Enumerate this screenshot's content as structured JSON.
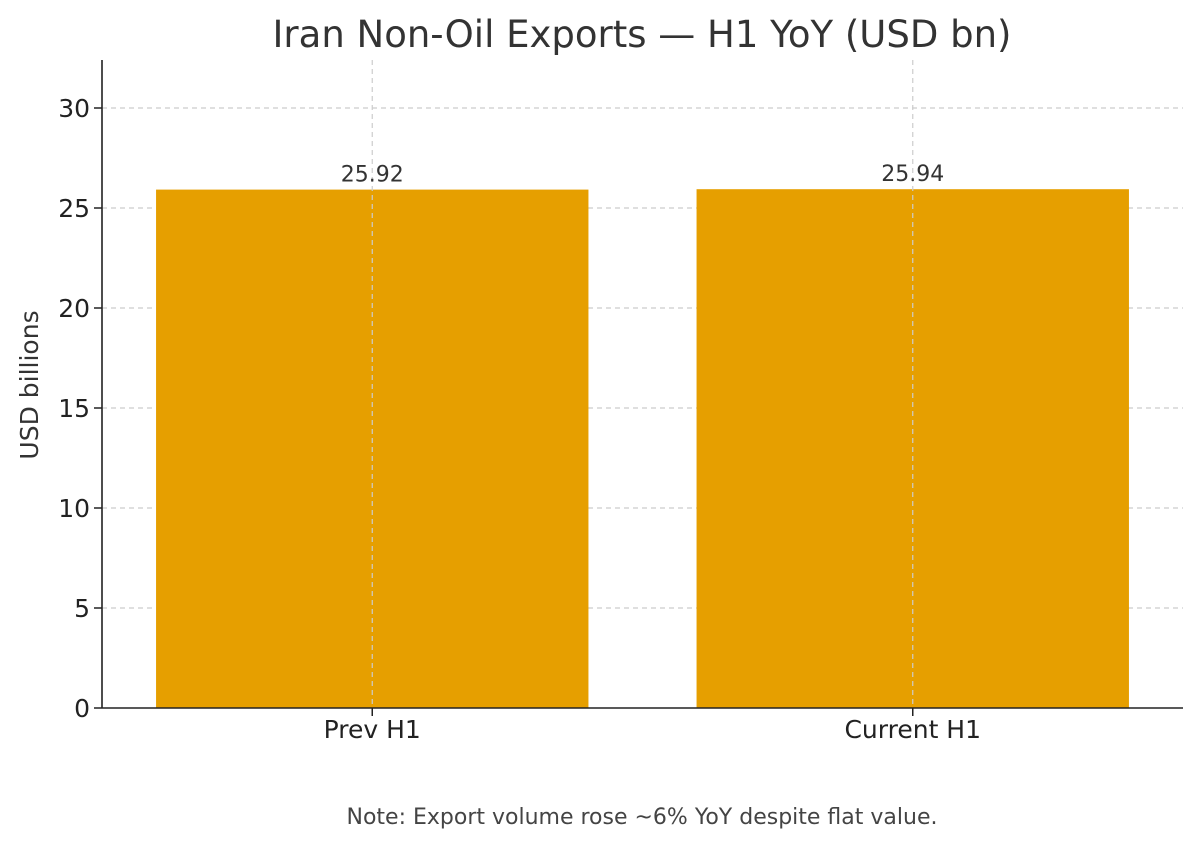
{
  "chart_data": {
    "type": "bar",
    "title": "Iran Non-Oil Exports — H1 YoY (USD bn)",
    "xlabel": "",
    "ylabel": "USD billions",
    "categories": [
      "Prev H1",
      "Current H1"
    ],
    "values": [
      25.92,
      25.94
    ],
    "value_labels": [
      "25.92",
      "25.94"
    ],
    "ylim": [
      0,
      32.4
    ],
    "yticks": [
      0,
      5,
      10,
      15,
      20,
      25,
      30
    ],
    "grid": true,
    "legend": "none",
    "bar_color": "#E69F00",
    "note": "Note: Export volume rose ~6% YoY despite flat value."
  }
}
